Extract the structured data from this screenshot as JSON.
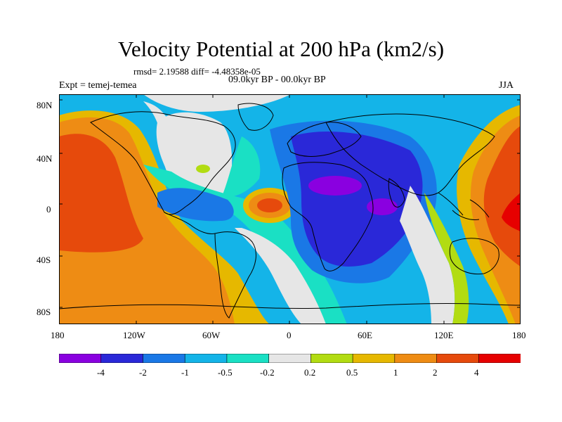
{
  "title": "Velocity Potential at 200 hPa (km2/s)",
  "stats": "rmsd= 2.19588 diff= -4.48358e-05",
  "experiment": "Expt = temej-temea",
  "period": "09.0kyr BP - 00.0kyr BP",
  "season": "JJA",
  "lat_labels": [
    "80N",
    "40N",
    "0",
    "40S",
    "80S"
  ],
  "lon_labels": [
    "180",
    "120W",
    "60W",
    "0",
    "60E",
    "120E",
    "180"
  ],
  "colorbar": {
    "labels": [
      "-4",
      "-2",
      "-1",
      "-0.5",
      "-0.2",
      "0.2",
      "0.5",
      "1",
      "2",
      "4"
    ],
    "colors": [
      "#8a00e0",
      "#2a28d8",
      "#1a78e6",
      "#14b4e8",
      "#1ae0c4",
      "#e6e6e6",
      "#b2dc12",
      "#e6b800",
      "#ee8c14",
      "#e64a0c",
      "#e60000"
    ]
  },
  "map_regions": [
    {
      "name": "pacific-west-positive",
      "level": "2"
    },
    {
      "name": "africa-indian-ocean-negative",
      "level": "-2"
    },
    {
      "name": "arabia-minimum",
      "level": "-4"
    },
    {
      "name": "tropical-atlantic-positive",
      "level": "2"
    },
    {
      "name": "western-pacific-positive",
      "level": "4"
    }
  ]
}
